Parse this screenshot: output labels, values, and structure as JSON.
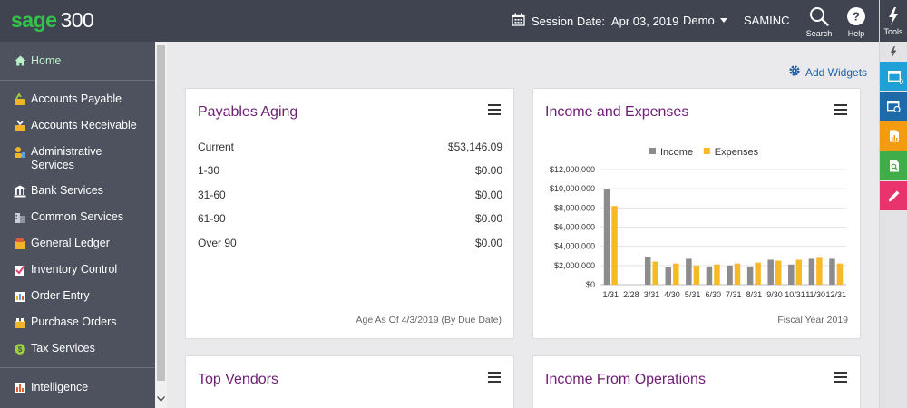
{
  "app": {
    "logo_primary": "sage",
    "logo_number": "300",
    "session_label": "Session Date:",
    "session_date": "Apr 03, 2019",
    "company": "Demo",
    "user": "SAMINC",
    "search_label": "Search",
    "help_label": "Help",
    "tools_label": "Tools"
  },
  "sidebar": {
    "home": "Home",
    "items": [
      {
        "label": "Accounts Payable",
        "icon": "accounts-payable-icon"
      },
      {
        "label": "Accounts Receivable",
        "icon": "accounts-receivable-icon"
      },
      {
        "label": "Administrative Services",
        "icon": "admin-services-icon"
      },
      {
        "label": "Bank Services",
        "icon": "bank-icon"
      },
      {
        "label": "Common Services",
        "icon": "common-services-icon"
      },
      {
        "label": "General Ledger",
        "icon": "general-ledger-icon"
      },
      {
        "label": "Inventory Control",
        "icon": "inventory-icon"
      },
      {
        "label": "Order Entry",
        "icon": "order-entry-icon"
      },
      {
        "label": "Purchase Orders",
        "icon": "purchase-orders-icon"
      },
      {
        "label": "Tax Services",
        "icon": "tax-icon"
      }
    ],
    "intelligence": "Intelligence"
  },
  "rail": {
    "notification_count": "0",
    "tile_colors": [
      "#1fa0d6",
      "#1e6aa8",
      "#f39c12",
      "#3fae49",
      "#e8336d"
    ]
  },
  "content": {
    "add_widgets": "Add Widgets",
    "payables": {
      "title": "Payables Aging",
      "rows": [
        {
          "label": "Current",
          "value": "$53,146.09"
        },
        {
          "label": "1-30",
          "value": "$0.00"
        },
        {
          "label": "31-60",
          "value": "$0.00"
        },
        {
          "label": "61-90",
          "value": "$0.00"
        },
        {
          "label": "Over 90",
          "value": "$0.00"
        }
      ],
      "footnote": "Age As Of 4/3/2019 (By Due Date)"
    },
    "income_expenses": {
      "title": "Income and Expenses",
      "footnote": "Fiscal Year 2019"
    },
    "top_vendors": {
      "title": "Top Vendors"
    },
    "income_operations": {
      "title": "Income From Operations"
    }
  },
  "chart_data": {
    "type": "bar",
    "categories": [
      "1/31",
      "2/28",
      "3/31",
      "4/30",
      "5/31",
      "6/30",
      "7/31",
      "8/31",
      "9/30",
      "10/31",
      "11/30",
      "12/31"
    ],
    "series": [
      {
        "name": "Income",
        "color": "#8c8c8c",
        "values": [
          10000000,
          0,
          2900000,
          1800000,
          2700000,
          1900000,
          2000000,
          1900000,
          2600000,
          2100000,
          2700000,
          2700000
        ]
      },
      {
        "name": "Expenses",
        "color": "#f7b928",
        "values": [
          8200000,
          0,
          2400000,
          2200000,
          2000000,
          2100000,
          2200000,
          2300000,
          2500000,
          2600000,
          2800000,
          2200000
        ]
      }
    ],
    "yticks": [
      "$12,000,000",
      "$10,000,000",
      "$8,000,000",
      "$6,000,000",
      "$4,000,000",
      "$2,000,000",
      "$0"
    ],
    "ylim": [
      0,
      12000000
    ],
    "legend_position": "top",
    "grid": true
  }
}
